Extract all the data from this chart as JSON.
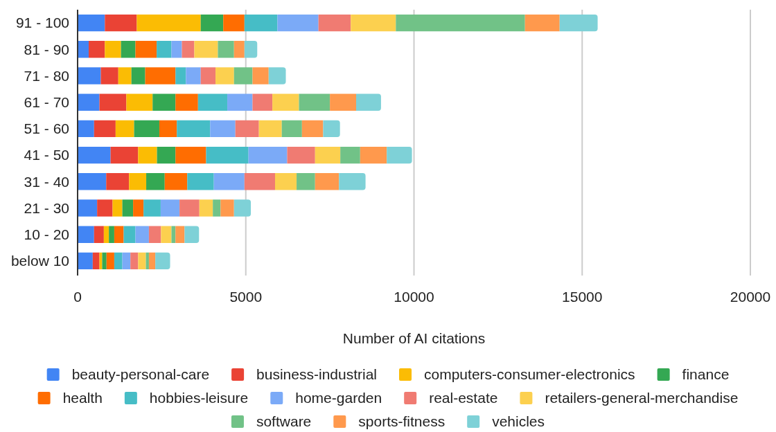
{
  "chart_data": {
    "type": "bar",
    "orientation": "horizontal",
    "stacked": true,
    "xlabel": "Number of AI citations",
    "categories": [
      "91 - 100",
      "81 - 90",
      "71 - 80",
      "61 - 70",
      "51 - 60",
      "41 - 50",
      "31 - 40",
      "21 - 30",
      "10 - 20",
      "below 10"
    ],
    "series": [
      {
        "name": "beauty-personal-care",
        "color": "#4285f4",
        "values": [
          810,
          330,
          690,
          650,
          490,
          980,
          850,
          580,
          490,
          450
        ]
      },
      {
        "name": "business-industrial",
        "color": "#ea4335",
        "values": [
          950,
          480,
          520,
          800,
          640,
          820,
          680,
          460,
          290,
          200
        ]
      },
      {
        "name": "computers-consumer-electronics",
        "color": "#fbbc04",
        "values": [
          1900,
          480,
          390,
          780,
          550,
          560,
          510,
          290,
          150,
          80
        ]
      },
      {
        "name": "finance",
        "color": "#34a853",
        "values": [
          670,
          430,
          410,
          680,
          750,
          550,
          550,
          320,
          160,
          130
        ]
      },
      {
        "name": "health",
        "color": "#ff6d01",
        "values": [
          630,
          630,
          900,
          670,
          520,
          910,
          670,
          310,
          280,
          230
        ]
      },
      {
        "name": "hobbies-leisure",
        "color": "#46bdc6",
        "values": [
          980,
          440,
          310,
          870,
          990,
          1260,
          790,
          510,
          350,
          240
        ]
      },
      {
        "name": "home-garden",
        "color": "#7baaf7",
        "values": [
          1220,
          310,
          440,
          750,
          750,
          1150,
          910,
          560,
          400,
          240
        ]
      },
      {
        "name": "real-estate",
        "color": "#f07b72",
        "values": [
          960,
          370,
          440,
          590,
          700,
          830,
          910,
          590,
          360,
          230
        ]
      },
      {
        "name": "retailers-general-merchandise",
        "color": "#fcd04f",
        "values": [
          1340,
          700,
          550,
          790,
          680,
          750,
          640,
          400,
          310,
          230
        ]
      },
      {
        "name": "software",
        "color": "#71c287",
        "values": [
          3840,
          480,
          550,
          920,
          600,
          590,
          550,
          230,
          120,
          90
        ]
      },
      {
        "name": "sports-fitness",
        "color": "#ff994d",
        "values": [
          1030,
          310,
          480,
          780,
          630,
          790,
          710,
          400,
          270,
          190
        ]
      },
      {
        "name": "vehicles",
        "color": "#7ed1d7",
        "values": [
          1130,
          380,
          510,
          740,
          500,
          750,
          790,
          500,
          430,
          440
        ]
      }
    ],
    "xlim": [
      0,
      20000
    ],
    "xticks": [
      0,
      5000,
      10000,
      15000,
      20000
    ],
    "grid": "x",
    "legend": "bottom"
  }
}
